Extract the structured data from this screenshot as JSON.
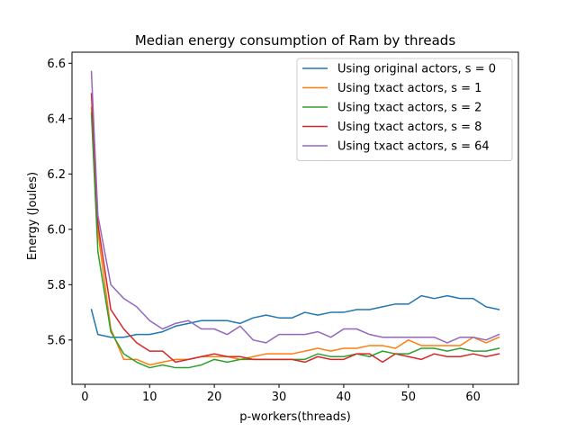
{
  "chart_data": {
    "type": "line",
    "title": "Median energy consumption of Ram by threads",
    "xlabel": "p-workers(threads)",
    "ylabel": "Energy (Joules)",
    "xlim": [
      -2,
      67
    ],
    "ylim": [
      5.44,
      6.64
    ],
    "xticks": [
      0,
      10,
      20,
      30,
      40,
      50,
      60
    ],
    "yticks": [
      5.6,
      5.8,
      6.0,
      6.2,
      6.4,
      6.6
    ],
    "ytick_labels": [
      "5.6",
      "5.8",
      "6.0",
      "6.2",
      "6.4",
      "6.6"
    ],
    "legend_position": "top-right",
    "grid": false,
    "x": [
      1,
      2,
      4,
      6,
      8,
      10,
      12,
      14,
      16,
      18,
      20,
      22,
      24,
      26,
      28,
      30,
      32,
      34,
      36,
      38,
      40,
      42,
      44,
      46,
      48,
      50,
      52,
      54,
      56,
      58,
      60,
      62,
      64
    ],
    "series": [
      {
        "name": "Using original actors, s = 0",
        "color": "#1f77b4",
        "values": [
          5.71,
          5.62,
          5.61,
          5.61,
          5.62,
          5.62,
          5.63,
          5.65,
          5.66,
          5.67,
          5.67,
          5.67,
          5.66,
          5.68,
          5.69,
          5.68,
          5.68,
          5.7,
          5.69,
          5.7,
          5.7,
          5.71,
          5.71,
          5.72,
          5.73,
          5.73,
          5.76,
          5.75,
          5.76,
          5.75,
          5.75,
          5.72,
          5.71
        ]
      },
      {
        "name": "Using txact actors, s = 1",
        "color": "#ff7f0e",
        "values": [
          6.44,
          5.99,
          5.64,
          5.53,
          5.53,
          5.51,
          5.52,
          5.53,
          5.53,
          5.54,
          5.54,
          5.54,
          5.53,
          5.54,
          5.55,
          5.55,
          5.55,
          5.56,
          5.57,
          5.56,
          5.57,
          5.57,
          5.58,
          5.58,
          5.57,
          5.6,
          5.58,
          5.58,
          5.58,
          5.58,
          5.61,
          5.59,
          5.61
        ]
      },
      {
        "name": "Using txact actors, s = 2",
        "color": "#2ca02c",
        "values": [
          6.42,
          5.92,
          5.63,
          5.55,
          5.52,
          5.5,
          5.51,
          5.5,
          5.5,
          5.51,
          5.53,
          5.52,
          5.53,
          5.53,
          5.53,
          5.53,
          5.53,
          5.53,
          5.55,
          5.54,
          5.54,
          5.55,
          5.54,
          5.56,
          5.55,
          5.55,
          5.57,
          5.57,
          5.56,
          5.57,
          5.56,
          5.56,
          5.57
        ]
      },
      {
        "name": "Using txact actors, s = 8",
        "color": "#d62728",
        "values": [
          6.49,
          6.02,
          5.71,
          5.64,
          5.59,
          5.56,
          5.56,
          5.52,
          5.53,
          5.54,
          5.55,
          5.54,
          5.54,
          5.53,
          5.53,
          5.53,
          5.53,
          5.52,
          5.54,
          5.53,
          5.53,
          5.55,
          5.55,
          5.52,
          5.55,
          5.54,
          5.53,
          5.55,
          5.54,
          5.54,
          5.55,
          5.54,
          5.55
        ]
      },
      {
        "name": "Using txact actors, s = 64",
        "color": "#9467bd",
        "values": [
          6.57,
          6.05,
          5.8,
          5.75,
          5.72,
          5.67,
          5.64,
          5.66,
          5.67,
          5.64,
          5.64,
          5.62,
          5.65,
          5.6,
          5.59,
          5.62,
          5.62,
          5.62,
          5.63,
          5.61,
          5.64,
          5.64,
          5.62,
          5.61,
          5.61,
          5.61,
          5.61,
          5.61,
          5.59,
          5.61,
          5.61,
          5.6,
          5.62
        ]
      }
    ]
  }
}
